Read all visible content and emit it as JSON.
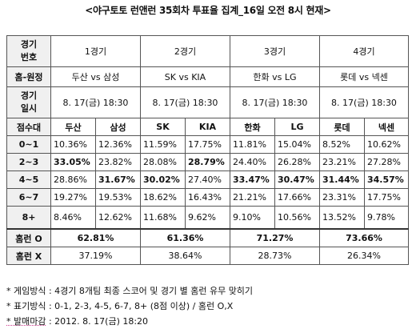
{
  "title": "<야구토토 런앤런 35회차 투표율 집계_16일 오전 8시 현재>",
  "header": {
    "game_no_label": "경기\n번호",
    "games": [
      "1경기",
      "2경기",
      "3경기",
      "4경기"
    ],
    "home_away_label": "홈-원정",
    "matchups": [
      "두산 vs 삼성",
      "SK vs KIA",
      "한화 vs LG",
      "롯데 vs 넥센"
    ],
    "date_label": "경기\n일시",
    "dates": [
      "8. 17(금) 18:30",
      "8. 17(금) 18:30",
      "8. 17(금) 18:30",
      "8. 17(금) 18:30"
    ],
    "score_label": "점수대",
    "teams": [
      "두산",
      "삼성",
      "SK",
      "KIA",
      "한화",
      "LG",
      "롯데",
      "넥센"
    ]
  },
  "rows": [
    {
      "label": "0~1",
      "values": [
        "10.36%",
        "12.36%",
        "11.59%",
        "17.75%",
        "11.81%",
        "15.04%",
        "8.52%",
        "10.62%"
      ],
      "bold": [
        false,
        false,
        false,
        false,
        false,
        false,
        false,
        false
      ]
    },
    {
      "label": "2~3",
      "values": [
        "33.05%",
        "23.82%",
        "28.08%",
        "28.79%",
        "24.40%",
        "26.28%",
        "23.21%",
        "27.28%"
      ],
      "bold": [
        true,
        false,
        false,
        true,
        false,
        false,
        false,
        false
      ]
    },
    {
      "label": "4~5",
      "values": [
        "28.86%",
        "31.67%",
        "30.02%",
        "27.40%",
        "33.47%",
        "30.47%",
        "31.44%",
        "34.57%"
      ],
      "bold": [
        false,
        true,
        true,
        false,
        true,
        true,
        true,
        true
      ]
    },
    {
      "label": "6~7",
      "values": [
        "19.27%",
        "19.53%",
        "18.62%",
        "16.43%",
        "21.21%",
        "17.66%",
        "23.31%",
        "17.75%"
      ],
      "bold": [
        false,
        false,
        false,
        false,
        false,
        false,
        false,
        false
      ]
    },
    {
      "label": "8+",
      "values": [
        "8.46%",
        "12.62%",
        "11.68%",
        "9.62%",
        "9.10%",
        "10.56%",
        "13.52%",
        "9.78%"
      ],
      "bold": [
        false,
        false,
        false,
        false,
        false,
        false,
        false,
        false
      ]
    }
  ],
  "homerun_o": {
    "label": "홈런 O",
    "values": [
      "62.81%",
      "61.36%",
      "71.27%",
      "73.66%"
    ]
  },
  "homerun_x": {
    "label": "홈런 X",
    "values": [
      "37.19%",
      "38.64%",
      "28.73%",
      "26.34%"
    ]
  },
  "notes": [
    {
      "label": "* 게임방식",
      "text": " : 4경기 8개팀 최종 스코어 및 경기 별 홈런 유무 맞히기"
    },
    {
      "label": "* 표기방식",
      "text": " : 0-1, 2-3, 4-5, 6-7, 8+ (8점 이상) / 홈런 O,X"
    },
    {
      "label": "* 발매마감",
      "text": " : 2012. 8. 17(금) 18:20"
    }
  ]
}
